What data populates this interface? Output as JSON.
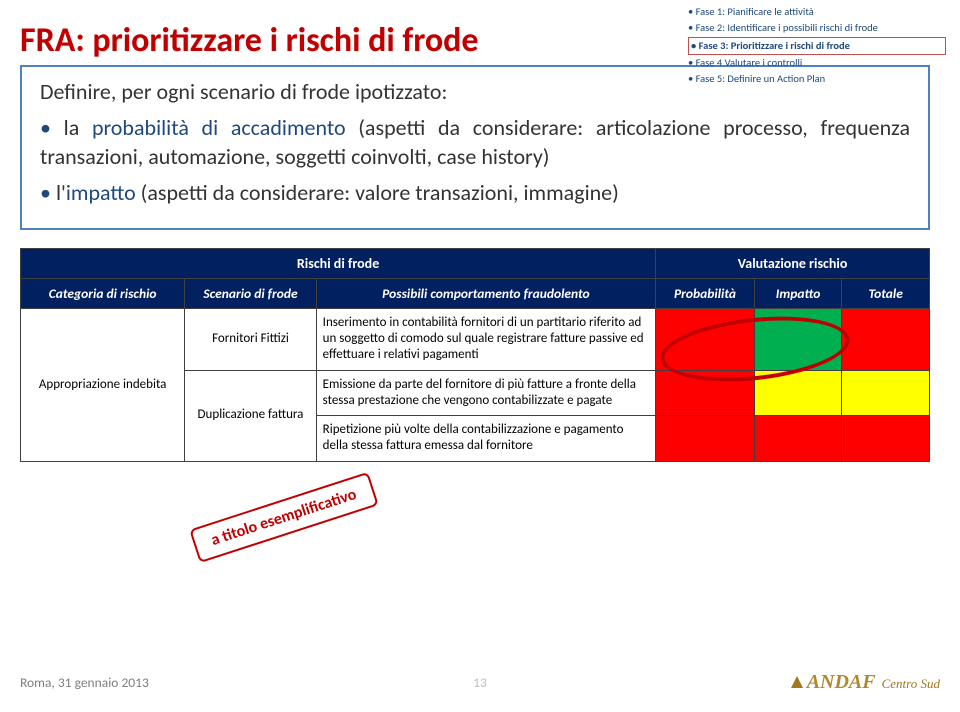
{
  "title": "FRA: prioritizzare i rischi di frode",
  "phases": {
    "items": [
      "Fase 1: Pianificare le attività",
      "Fase 2: Identificare i possibili rischi di frode",
      "Fase 3: Prioritizzare i rischi di frode",
      "Fase 4 Valutare i controlli",
      "Fase 5: Definire un Action Plan"
    ],
    "highlighted_index": 2
  },
  "intro": {
    "lead": "Definire, per ogni scenario di frode ipotizzato:",
    "bullets": [
      {
        "pre": "la ",
        "em": "probabilità di accadimento",
        "post": " (aspetti da considerare: articolazione processo, frequenza transazioni, automazione, soggetti coinvolti, case history)"
      },
      {
        "pre": "l'",
        "em": "impatto",
        "post": " (aspetti da considerare: valore transazioni, immagine)"
      }
    ]
  },
  "table": {
    "group_headers": {
      "left": "Rischi di frode",
      "right": "Valutazione rischio"
    },
    "columns": [
      "Categoria di rischio",
      "Scenario di frode",
      "Possibili comportamento fraudolento",
      "Probabilità",
      "Impatto",
      "Totale"
    ],
    "category": "Appropriazione indebita",
    "scenario1": "Fornitori Fittizi",
    "scenario2": "Duplicazione fattura",
    "behavior1": "Inserimento in contabilità fornitori di un partitario riferito ad un soggetto di comodo sul quale registrare fatture passive ed effettuare i relativi pagamenti",
    "behavior2": "Emissione da parte del fornitore di più fatture a fronte della stessa prestazione che vengono contabilizzate e pagate",
    "behavior3": "Ripetizione più volte della contabilizzazione e pagamento della stessa fattura emessa dal fornitore",
    "colors": {
      "header_bg": "#002060",
      "header_fg": "#ffffff",
      "red": "#ff0000",
      "green": "#00b050",
      "yellow": "#ffff00",
      "border": "#404040"
    },
    "matrix": [
      [
        "red",
        "green",
        "red"
      ],
      [
        "red",
        "yellow",
        "yellow"
      ],
      [
        "red",
        "red",
        "red"
      ]
    ]
  },
  "annotations": {
    "stamp_text": "a titolo esemplificativo"
  },
  "footer": {
    "date": "Roma, 31 gennaio 2013",
    "page": "13",
    "logo_main": "ANDAF",
    "logo_sub": "Centro Sud"
  }
}
